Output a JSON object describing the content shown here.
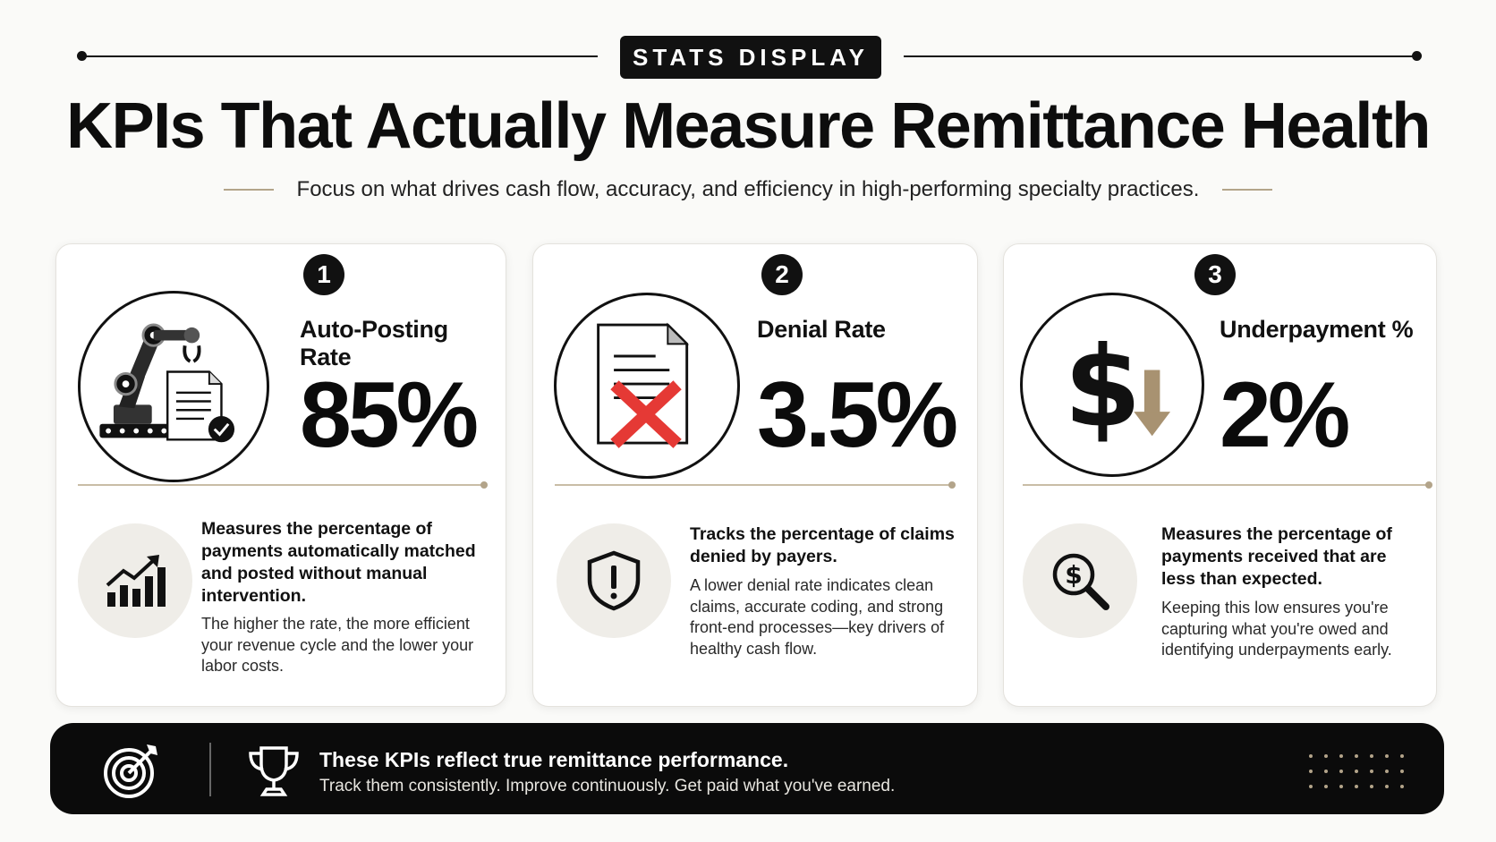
{
  "header": {
    "badge": "STATS DISPLAY",
    "title": "KPIs That Actually Measure Remittance Health",
    "subtitle": "Focus on what drives cash flow, accuracy, and efficiency in high-performing specialty practices."
  },
  "colors": {
    "accent_tan": "#b3a48a",
    "dark": "#111111",
    "denial_red": "#e53935",
    "arrow_tan": "#a89271",
    "icon_bg": "#efede8"
  },
  "cards": [
    {
      "number": "1",
      "icon": "robot-arm-document-icon",
      "label": "Auto-Posting Rate",
      "value": "85%",
      "small_icon": "growth-chart-icon",
      "headline": "Measures the percentage of payments automatically matched and posted without manual intervention.",
      "body": "The higher the rate, the more efficient your revenue cycle and the lower your labor costs."
    },
    {
      "number": "2",
      "icon": "denied-document-icon",
      "label": "Denial Rate",
      "value": "3.5%",
      "small_icon": "shield-alert-icon",
      "headline": "Tracks the percentage of claims denied by payers.",
      "body": "A lower denial rate indicates clean claims, accurate coding, and strong front-end processes—key drivers of healthy cash flow."
    },
    {
      "number": "3",
      "icon": "dollar-down-arrow-icon",
      "label": "Underpayment %",
      "value": "2%",
      "small_icon": "dollar-search-icon",
      "headline": "Measures the percentage of payments received that are less than expected.",
      "body": "Keeping this low ensures you're capturing what you're owed and identifying underpayments early."
    }
  ],
  "footer": {
    "title": "These KPIs reflect true remittance performance.",
    "subtitle": "Track them consistently. Improve continuously. Get paid what you've earned.",
    "left_icon": "target-icon",
    "right_icon": "trophy-icon"
  }
}
